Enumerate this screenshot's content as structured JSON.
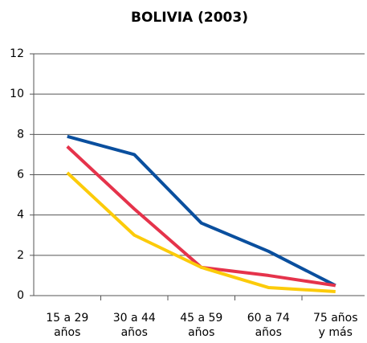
{
  "chart_data": {
    "type": "line",
    "title": "BOLIVIA (2003)",
    "categories": [
      [
        "15 a 29",
        "años"
      ],
      [
        "30 a 44",
        "años"
      ],
      [
        "45 a 59",
        "años"
      ],
      [
        "60 a 74",
        "años"
      ],
      [
        "75 años",
        "y más"
      ]
    ],
    "series": [
      {
        "color": "#0a4f9e",
        "values": [
          7.9,
          7.0,
          3.6,
          2.2,
          0.5
        ]
      },
      {
        "color": "#e5334b",
        "values": [
          7.4,
          4.3,
          1.4,
          1.0,
          0.5
        ]
      },
      {
        "color": "#fccb0a",
        "values": [
          6.1,
          3.0,
          1.4,
          0.4,
          0.2
        ]
      }
    ],
    "ylim": [
      0,
      12
    ],
    "yticks": [
      0,
      2,
      4,
      6,
      8,
      10,
      12
    ],
    "grid": true
  }
}
